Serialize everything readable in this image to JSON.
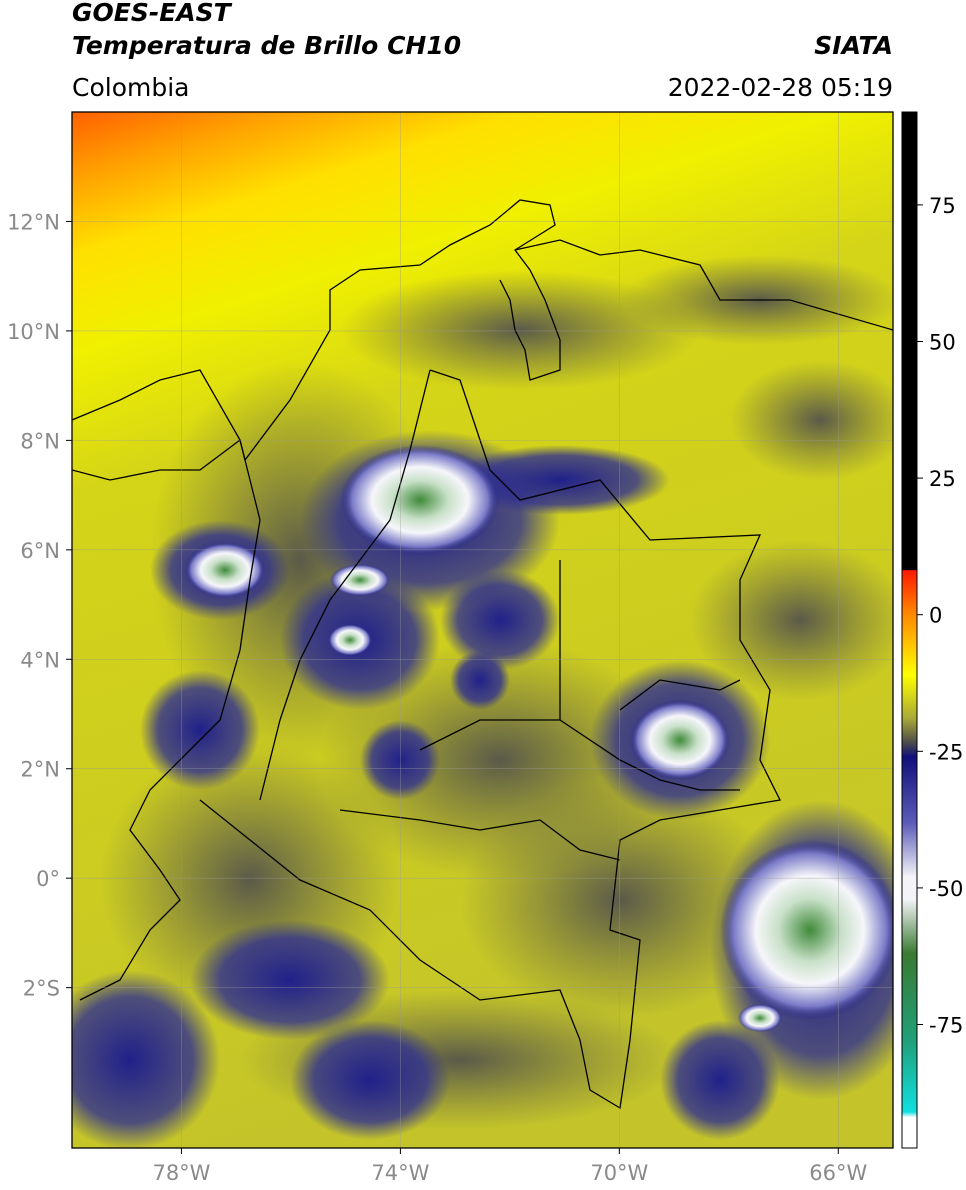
{
  "header": {
    "title_line1": "GOES-EAST",
    "title_line2": "Temperatura de Brillo CH10",
    "organization": "SIATA",
    "region": "Colombia",
    "timestamp": "2022-02-28 05:19"
  },
  "map": {
    "lon_range": [
      -80,
      -65
    ],
    "lat_range": [
      -4.93,
      14
    ],
    "lon_ticks": [
      {
        "value": -78,
        "label": "78°W"
      },
      {
        "value": -74,
        "label": "74°W"
      },
      {
        "value": -70,
        "label": "70°W"
      },
      {
        "value": -66,
        "label": "66°W"
      }
    ],
    "lat_ticks": [
      {
        "value": 12,
        "label": "12°N"
      },
      {
        "value": 10,
        "label": "10°N"
      },
      {
        "value": 8,
        "label": "8°N"
      },
      {
        "value": 6,
        "label": "6°N"
      },
      {
        "value": 4,
        "label": "4°N"
      },
      {
        "value": 2,
        "label": "2°N"
      },
      {
        "value": 0,
        "label": "0°"
      },
      {
        "value": -2,
        "label": "2°S"
      }
    ],
    "grid": true
  },
  "colorbar": {
    "range": [
      -97.6,
      92
    ],
    "ticks": [
      75,
      50,
      25,
      0,
      -25,
      -50,
      -75
    ],
    "colormap": [
      {
        "value": 92,
        "color": "#000000"
      },
      {
        "value": 8.2,
        "color": "#000000"
      },
      {
        "value": 8.1,
        "color": "#ff1a00"
      },
      {
        "value": 0,
        "color": "#ff8a00"
      },
      {
        "value": -11,
        "color": "#ffff00"
      },
      {
        "value": -19,
        "color": "#a8a838"
      },
      {
        "value": -23,
        "color": "#555548"
      },
      {
        "value": -26,
        "color": "#10107a"
      },
      {
        "value": -38,
        "color": "#5a5ab8"
      },
      {
        "value": -48,
        "color": "#f4f4f8"
      },
      {
        "value": -52,
        "color": "#f4f4f8"
      },
      {
        "value": -62,
        "color": "#3a7a32"
      },
      {
        "value": -78,
        "color": "#20a07a"
      },
      {
        "value": -91,
        "color": "#10e0e0"
      },
      {
        "value": -92,
        "color": "#ffffff"
      },
      {
        "value": -97.6,
        "color": "#ffffff"
      }
    ]
  }
}
